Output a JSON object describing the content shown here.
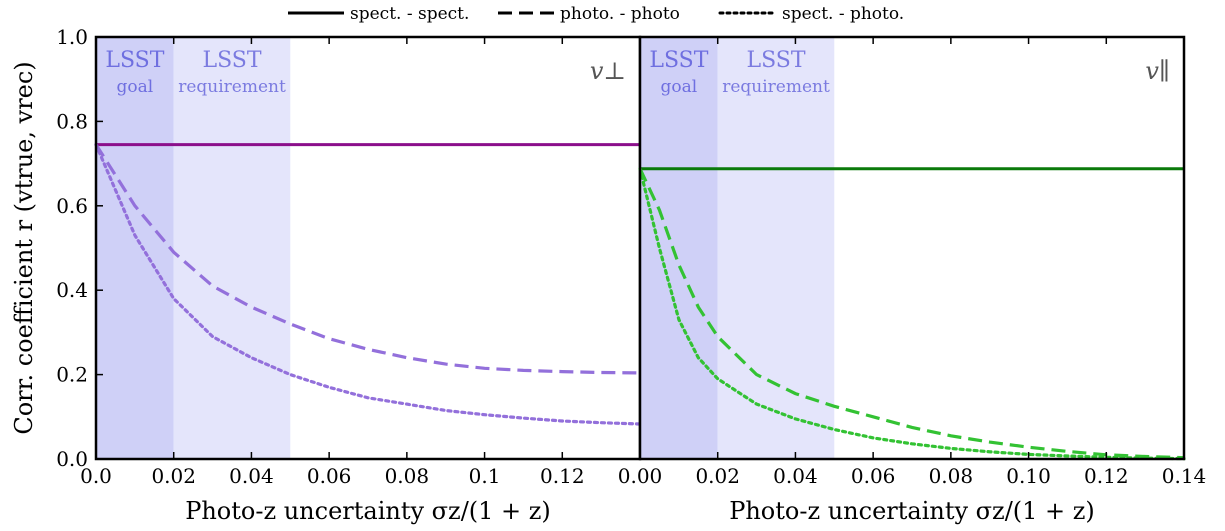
{
  "chart_data": [
    {
      "type": "line",
      "panel": "left",
      "corner_label": "v⊥",
      "xlabel": "Photo-z uncertainty σz/(1 + z)",
      "ylabel": "Corr. coefficient r (vtrue, vrec)",
      "xlim": [
        0,
        0.14
      ],
      "ylim": [
        0,
        1.0
      ],
      "x_tick_labels": [
        "0.0",
        "0.02",
        "0.04",
        "0.06",
        "0.08",
        "0.1",
        "0.12"
      ],
      "x_ticks": [
        0,
        0.02,
        0.04,
        0.06,
        0.08,
        0.1,
        0.12
      ],
      "y_tick_labels": [
        "0.0",
        "0.2",
        "0.4",
        "0.6",
        "0.8",
        "1.0"
      ],
      "y_ticks": [
        0,
        0.2,
        0.4,
        0.6,
        0.8,
        1.0
      ],
      "bands": [
        {
          "title": "LSST",
          "subtitle": "goal",
          "x0": 0,
          "x1": 0.02,
          "color": "#cfd0f7",
          "text_color": "#6f6fe0"
        },
        {
          "title": "LSST",
          "subtitle": "requirement",
          "x0": 0.02,
          "x1": 0.05,
          "color": "#e4e5fb",
          "text_color": "#7b7be0"
        }
      ],
      "series": [
        {
          "name": "spect. - spect.",
          "style": "solid",
          "color": "#8b0f8b",
          "x": [
            0,
            0.14
          ],
          "y": [
            0.745,
            0.745
          ]
        },
        {
          "name": "photo. - photo",
          "style": "dashed",
          "color": "#9370db",
          "x": [
            0,
            0.01,
            0.02,
            0.03,
            0.04,
            0.05,
            0.06,
            0.07,
            0.08,
            0.09,
            0.1,
            0.11,
            0.12,
            0.13,
            0.14
          ],
          "y": [
            0.745,
            0.6,
            0.49,
            0.41,
            0.36,
            0.32,
            0.285,
            0.26,
            0.24,
            0.225,
            0.215,
            0.21,
            0.207,
            0.205,
            0.204
          ]
        },
        {
          "name": "spect. - photo.",
          "style": "dotted",
          "color": "#9370db",
          "x": [
            0,
            0.01,
            0.02,
            0.03,
            0.04,
            0.05,
            0.06,
            0.07,
            0.08,
            0.09,
            0.1,
            0.11,
            0.12,
            0.13,
            0.14
          ],
          "y": [
            0.745,
            0.53,
            0.38,
            0.29,
            0.24,
            0.2,
            0.17,
            0.145,
            0.13,
            0.115,
            0.105,
            0.097,
            0.09,
            0.086,
            0.083
          ]
        }
      ]
    },
    {
      "type": "line",
      "panel": "right",
      "corner_label": "v∥",
      "xlabel": "Photo-z uncertainty σz/(1 + z)",
      "xlim": [
        0,
        0.14
      ],
      "ylim": [
        0,
        1.0
      ],
      "x_tick_labels": [
        "0.00",
        "0.02",
        "0.04",
        "0.06",
        "0.08",
        "0.10",
        "0.12",
        "0.14"
      ],
      "x_ticks": [
        0,
        0.02,
        0.04,
        0.06,
        0.08,
        0.1,
        0.12,
        0.14
      ],
      "bands": [
        {
          "title": "LSST",
          "subtitle": "goal",
          "x0": 0,
          "x1": 0.02,
          "color": "#cfd0f7",
          "text_color": "#6f6fe0"
        },
        {
          "title": "LSST",
          "subtitle": "requirement",
          "x0": 0.02,
          "x1": 0.05,
          "color": "#e4e5fb",
          "text_color": "#7b7be0"
        }
      ],
      "series": [
        {
          "name": "spect. - spect.",
          "style": "solid",
          "color": "#0a7a0a",
          "x": [
            0,
            0.14
          ],
          "y": [
            0.688,
            0.688
          ]
        },
        {
          "name": "photo. - photo",
          "style": "dashed",
          "color": "#33c233",
          "x": [
            0,
            0.005,
            0.01,
            0.015,
            0.02,
            0.03,
            0.04,
            0.05,
            0.06,
            0.07,
            0.08,
            0.09,
            0.1,
            0.11,
            0.12,
            0.13,
            0.14
          ],
          "y": [
            0.688,
            0.59,
            0.46,
            0.36,
            0.29,
            0.2,
            0.155,
            0.125,
            0.1,
            0.075,
            0.055,
            0.04,
            0.028,
            0.018,
            0.01,
            0.006,
            0.003
          ]
        },
        {
          "name": "spect. - photo.",
          "style": "dotted",
          "color": "#33c233",
          "x": [
            0,
            0.005,
            0.01,
            0.015,
            0.02,
            0.03,
            0.04,
            0.05,
            0.06,
            0.07,
            0.08,
            0.09,
            0.1,
            0.11,
            0.12,
            0.13,
            0.14
          ],
          "y": [
            0.688,
            0.5,
            0.33,
            0.24,
            0.19,
            0.13,
            0.095,
            0.07,
            0.05,
            0.036,
            0.025,
            0.017,
            0.011,
            0.007,
            0.004,
            0.002,
            0.001
          ]
        }
      ]
    }
  ],
  "legend": [
    {
      "label": "spect. - spect.",
      "style": "solid"
    },
    {
      "label": "photo. - photo",
      "style": "dashed"
    },
    {
      "label": "spect. - photo.",
      "style": "dotted"
    }
  ]
}
